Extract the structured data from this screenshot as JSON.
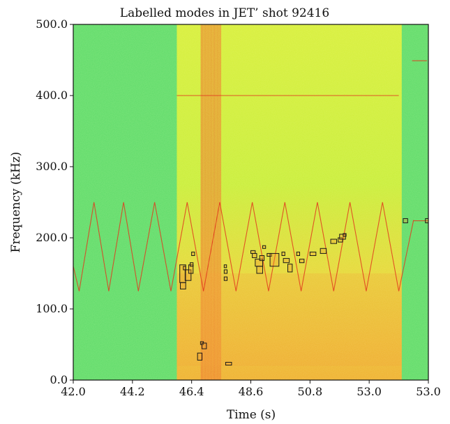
{
  "chart_data": {
    "type": "heatmap",
    "title": "Labelled modes in JET’ shot 92416",
    "xlabel": "Time (s)",
    "ylabel": "Frequency (kHz)",
    "xlim": [
      42.0,
      53.0
    ],
    "ylim": [
      0.0,
      500.0
    ],
    "x_tick_labels": [
      "42.0",
      "44.2",
      "46.4",
      "48.6",
      "50.8",
      "53.0",
      "53.0"
    ],
    "y_tick_labels": [
      "0.0",
      "100.0",
      "200.0",
      "300.0",
      "400.0",
      "500.0"
    ],
    "colormap": "green-yellow-orange-red",
    "colors": {
      "background": "#5fdc6a",
      "mid": "#c8ef3a",
      "high": "#f29a2e",
      "peak": "#e23a1e",
      "box": "#1a1a1a"
    },
    "heating_window": {
      "t": [
        45.5,
        53.1
      ],
      "bright_span": [
        46.3,
        47.0
      ]
    },
    "lines": [
      {
        "name": "sweep",
        "points": [
          [
            42.0,
            160
          ],
          [
            42.2,
            125
          ],
          [
            42.7,
            250
          ],
          [
            43.2,
            125
          ],
          [
            43.7,
            250
          ],
          [
            44.2,
            125
          ],
          [
            44.75,
            250
          ],
          [
            45.3,
            125
          ],
          [
            45.85,
            250
          ],
          [
            46.4,
            125
          ],
          [
            46.95,
            250
          ],
          [
            47.5,
            125
          ],
          [
            48.05,
            250
          ],
          [
            48.6,
            125
          ],
          [
            49.15,
            250
          ],
          [
            49.7,
            125
          ],
          [
            50.25,
            250
          ],
          [
            50.8,
            125
          ],
          [
            51.35,
            250
          ],
          [
            51.9,
            125
          ],
          [
            52.45,
            250
          ],
          [
            53.0,
            125
          ],
          [
            53.5,
            225
          ]
        ]
      },
      {
        "name": "400 kHz line",
        "points": [
          [
            45.5,
            400
          ],
          [
            53.0,
            400
          ]
        ]
      },
      {
        "name": "225 kHz line",
        "points": [
          [
            53.5,
            224
          ],
          [
            54.0,
            224
          ]
        ]
      },
      {
        "name": "450 kHz line",
        "points": [
          [
            53.45,
            449
          ],
          [
            53.95,
            449
          ]
        ]
      }
    ],
    "boxes": [
      {
        "t": [
          45.6,
          45.8
        ],
        "f": [
          137,
          162
        ]
      },
      {
        "t": [
          45.78,
          45.98
        ],
        "f": [
          140,
          155
        ]
      },
      {
        "t": [
          45.62,
          45.8
        ],
        "f": [
          128,
          137
        ]
      },
      {
        "t": [
          45.9,
          46.05
        ],
        "f": [
          150,
          162
        ]
      },
      {
        "t": [
          46.0,
          46.1
        ],
        "f": [
          175,
          180
        ]
      },
      {
        "t": [
          45.72,
          45.8
        ],
        "f": [
          155,
          160
        ]
      },
      {
        "t": [
          45.95,
          46.05
        ],
        "f": [
          160,
          165
        ]
      },
      {
        "t": [
          46.3,
          46.4
        ],
        "f": [
          50,
          54
        ]
      },
      {
        "t": [
          46.35,
          46.5
        ],
        "f": [
          44,
          52
        ]
      },
      {
        "t": [
          46.2,
          46.35
        ],
        "f": [
          28,
          38
        ]
      },
      {
        "t": [
          47.1,
          47.2
        ],
        "f": [
          140,
          145
        ]
      },
      {
        "t": [
          47.1,
          47.2
        ],
        "f": [
          150,
          155
        ]
      },
      {
        "t": [
          47.1,
          47.18
        ],
        "f": [
          158,
          162
        ]
      },
      {
        "t": [
          48.0,
          48.15
        ],
        "f": [
          178,
          182
        ]
      },
      {
        "t": [
          48.05,
          48.2
        ],
        "f": [
          172,
          178
        ]
      },
      {
        "t": [
          48.2,
          48.4
        ],
        "f": [
          150,
          160
        ]
      },
      {
        "t": [
          48.15,
          48.4
        ],
        "f": [
          160,
          170
        ]
      },
      {
        "t": [
          48.3,
          48.45
        ],
        "f": [
          168,
          175
        ]
      },
      {
        "t": [
          48.4,
          48.5
        ],
        "f": [
          185,
          189
        ]
      },
      {
        "t": [
          48.55,
          48.7
        ],
        "f": [
          174,
          178
        ]
      },
      {
        "t": [
          48.65,
          48.95
        ],
        "f": [
          160,
          178
        ]
      },
      {
        "t": [
          49.05,
          49.15
        ],
        "f": [
          175,
          180
        ]
      },
      {
        "t": [
          49.25,
          49.4
        ],
        "f": [
          152,
          163
        ]
      },
      {
        "t": [
          49.1,
          49.3
        ],
        "f": [
          165,
          171
        ]
      },
      {
        "t": [
          49.55,
          49.65
        ],
        "f": [
          175,
          180
        ]
      },
      {
        "t": [
          49.65,
          49.8
        ],
        "f": [
          165,
          170
        ]
      },
      {
        "t": [
          50.0,
          50.2
        ],
        "f": [
          175,
          180
        ]
      },
      {
        "t": [
          50.35,
          50.55
        ],
        "f": [
          178,
          185
        ]
      },
      {
        "t": [
          50.7,
          50.9
        ],
        "f": [
          192,
          198
        ]
      },
      {
        "t": [
          50.95,
          51.1
        ],
        "f": [
          194,
          200
        ]
      },
      {
        "t": [
          51.0,
          51.2
        ],
        "f": [
          198,
          205
        ]
      },
      {
        "t": [
          51.12,
          51.22
        ],
        "f": [
          202,
          206
        ]
      },
      {
        "t": [
          53.15,
          53.3
        ],
        "f": [
          221,
          227
        ]
      },
      {
        "t": [
          53.9,
          54.0
        ],
        "f": [
          221,
          227
        ]
      },
      {
        "t": [
          47.15,
          47.35
        ],
        "f": [
          21,
          25
        ]
      }
    ]
  }
}
